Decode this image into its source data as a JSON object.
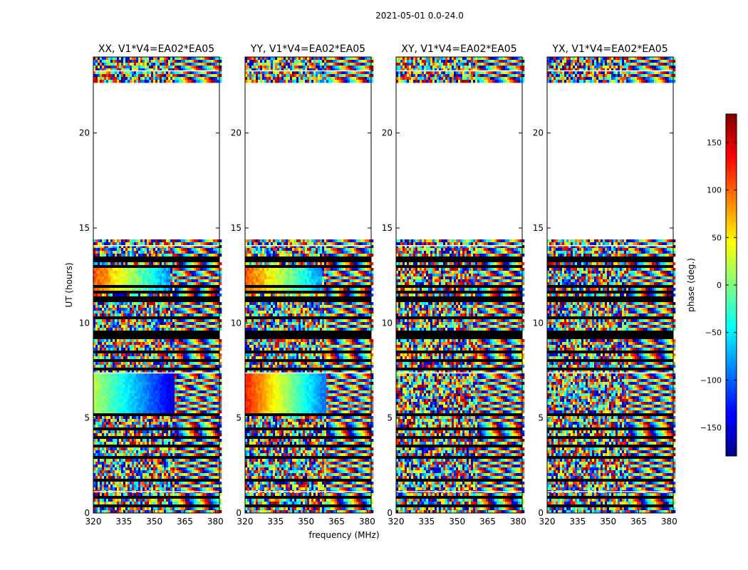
{
  "figure": {
    "suptitle": "2021-05-01 0.0-24.0",
    "ylabel": "UT (hours)",
    "xlabel": "frequency (MHz)"
  },
  "chart_data": {
    "type": "heatmap",
    "title": "2021-05-01 0.0-24.0",
    "xlabel": "frequency (MHz)",
    "ylabel": "UT (hours)",
    "xlim": [
      320,
      382
    ],
    "ylim": [
      0,
      24
    ],
    "xticks": [
      320,
      335,
      350,
      365,
      380
    ],
    "yticks": [
      0,
      5,
      10,
      15,
      20
    ],
    "colormap": "jet",
    "panels": [
      {
        "name": "XX, V1*V4=EA02*EA05",
        "structure": "coherent"
      },
      {
        "name": "YY, V1*V4=EA02*EA05",
        "structure": "coherent"
      },
      {
        "name": "XY, V1*V4=EA02*EA05",
        "structure": "noisy"
      },
      {
        "name": "YX, V1*V4=EA02*EA05",
        "structure": "noisy"
      }
    ],
    "data_gaps_hours": [
      [
        14.5,
        22.7
      ]
    ],
    "colorbar": {
      "label": "phase (deg.)",
      "range": [
        -180,
        180
      ],
      "ticks": [
        -150,
        -100,
        -50,
        0,
        50,
        100,
        150
      ]
    }
  }
}
